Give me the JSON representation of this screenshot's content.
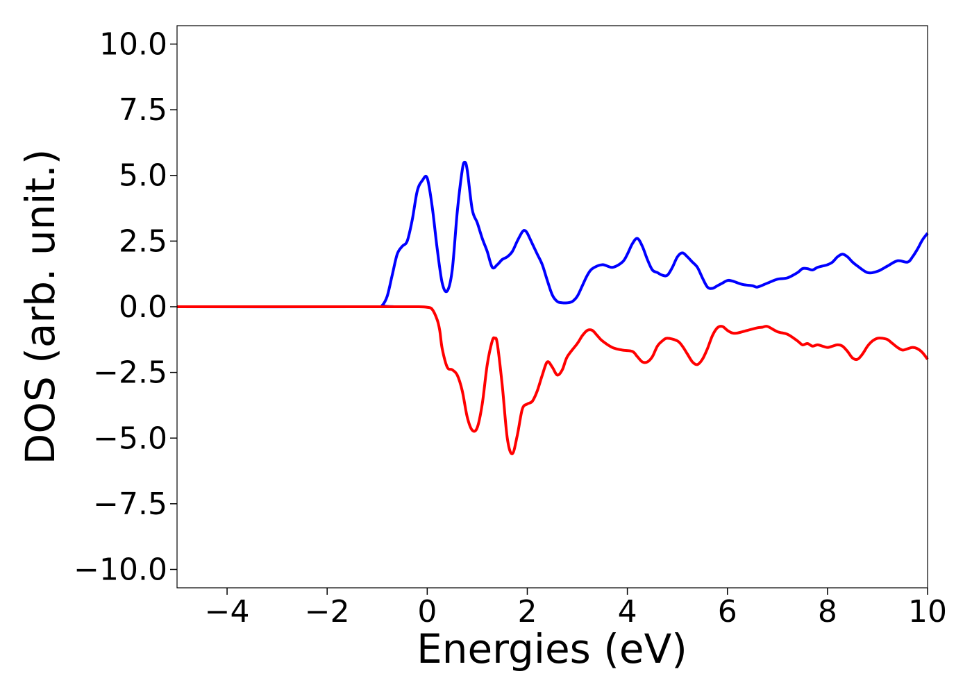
{
  "chart_data": {
    "type": "line",
    "title": "",
    "xlabel": "Energies (eV)",
    "ylabel": "DOS (arb. unit.)",
    "xlim": [
      -5,
      10
    ],
    "ylim": [
      -10.7,
      10.7
    ],
    "x_ticks": [
      -4,
      -2,
      0,
      2,
      4,
      6,
      8,
      10
    ],
    "x_tick_labels": [
      "−4",
      "−2",
      "0",
      "2",
      "4",
      "6",
      "8",
      "10"
    ],
    "y_ticks": [
      10,
      7.5,
      5,
      2.5,
      0,
      -2.5,
      -5,
      -7.5,
      -10
    ],
    "y_tick_labels": [
      "10.0",
      "7.5",
      "5.0",
      "2.5",
      "0.0",
      "−2.5",
      "−5.0",
      "−7.5",
      "−10.0"
    ],
    "grid": false,
    "legend": "none",
    "series": [
      {
        "color": "#0000ff",
        "x": [
          -5,
          -1.0,
          -0.9,
          -0.8,
          -0.7,
          -0.6,
          -0.5,
          -0.4,
          -0.3,
          -0.2,
          -0.1,
          0.0,
          0.1,
          0.2,
          0.3,
          0.4,
          0.5,
          0.6,
          0.7,
          0.75,
          0.8,
          0.9,
          1.0,
          1.1,
          1.2,
          1.3,
          1.4,
          1.5,
          1.6,
          1.7,
          1.8,
          1.9,
          1.95,
          2.0,
          2.1,
          2.2,
          2.3,
          2.4,
          2.5,
          2.6,
          2.7,
          2.8,
          2.9,
          3.0,
          3.1,
          3.2,
          3.3,
          3.5,
          3.7,
          3.9,
          4.0,
          4.1,
          4.2,
          4.3,
          4.4,
          4.5,
          4.6,
          4.7,
          4.8,
          4.9,
          5.0,
          5.1,
          5.2,
          5.3,
          5.4,
          5.5,
          5.6,
          5.7,
          5.8,
          5.9,
          6.0,
          6.1,
          6.3,
          6.5,
          6.6,
          6.8,
          7.0,
          7.2,
          7.4,
          7.5,
          7.6,
          7.7,
          7.8,
          7.9,
          8.0,
          8.1,
          8.2,
          8.3,
          8.4,
          8.5,
          8.6,
          8.8,
          9.0,
          9.2,
          9.4,
          9.6,
          9.7,
          9.8,
          9.9,
          10.0
        ],
        "y": [
          0,
          0,
          0.05,
          0.4,
          1.2,
          2.0,
          2.3,
          2.5,
          3.3,
          4.4,
          4.8,
          4.9,
          3.8,
          2.2,
          0.9,
          0.6,
          1.4,
          3.6,
          5.2,
          5.5,
          5.2,
          3.7,
          3.2,
          2.6,
          2.1,
          1.5,
          1.6,
          1.8,
          1.9,
          2.1,
          2.5,
          2.85,
          2.9,
          2.8,
          2.4,
          2.0,
          1.6,
          1.0,
          0.45,
          0.2,
          0.15,
          0.15,
          0.2,
          0.4,
          0.8,
          1.2,
          1.45,
          1.6,
          1.5,
          1.7,
          2.0,
          2.4,
          2.6,
          2.3,
          1.8,
          1.4,
          1.3,
          1.2,
          1.2,
          1.5,
          1.9,
          2.05,
          1.9,
          1.7,
          1.5,
          1.1,
          0.75,
          0.7,
          0.8,
          0.9,
          1.0,
          0.98,
          0.85,
          0.8,
          0.75,
          0.9,
          1.05,
          1.1,
          1.3,
          1.45,
          1.45,
          1.4,
          1.5,
          1.55,
          1.6,
          1.7,
          1.9,
          2.0,
          1.9,
          1.7,
          1.55,
          1.3,
          1.35,
          1.55,
          1.75,
          1.7,
          1.9,
          2.2,
          2.55,
          2.8
        ]
      },
      {
        "color": "#ff0000",
        "x": [
          -5,
          -1.0,
          -0.5,
          -0.2,
          0.0,
          0.1,
          0.2,
          0.25,
          0.3,
          0.4,
          0.5,
          0.6,
          0.7,
          0.8,
          0.9,
          1.0,
          1.1,
          1.2,
          1.3,
          1.35,
          1.4,
          1.5,
          1.6,
          1.7,
          1.8,
          1.9,
          2.0,
          2.1,
          2.2,
          2.3,
          2.4,
          2.5,
          2.6,
          2.7,
          2.8,
          3.0,
          3.1,
          3.2,
          3.3,
          3.4,
          3.5,
          3.7,
          3.9,
          4.1,
          4.2,
          4.3,
          4.4,
          4.5,
          4.6,
          4.7,
          4.8,
          5.0,
          5.1,
          5.2,
          5.3,
          5.4,
          5.5,
          5.6,
          5.7,
          5.8,
          5.9,
          6.0,
          6.1,
          6.2,
          6.4,
          6.6,
          6.7,
          6.8,
          7.0,
          7.2,
          7.4,
          7.5,
          7.6,
          7.7,
          7.8,
          7.9,
          8.0,
          8.1,
          8.2,
          8.3,
          8.4,
          8.5,
          8.6,
          8.7,
          8.8,
          8.9,
          9.0,
          9.1,
          9.2,
          9.3,
          9.4,
          9.5,
          9.6,
          9.7,
          9.8,
          9.9,
          10.0
        ],
        "y": [
          0,
          0,
          0,
          0,
          -0.02,
          -0.1,
          -0.5,
          -0.9,
          -1.6,
          -2.3,
          -2.4,
          -2.6,
          -3.2,
          -4.2,
          -4.7,
          -4.6,
          -3.7,
          -2.2,
          -1.3,
          -1.2,
          -1.4,
          -3.0,
          -5.0,
          -5.6,
          -4.9,
          -3.9,
          -3.7,
          -3.6,
          -3.2,
          -2.6,
          -2.1,
          -2.3,
          -2.6,
          -2.4,
          -1.9,
          -1.4,
          -1.1,
          -0.9,
          -0.9,
          -1.1,
          -1.3,
          -1.55,
          -1.65,
          -1.7,
          -1.9,
          -2.1,
          -2.1,
          -1.9,
          -1.5,
          -1.3,
          -1.2,
          -1.3,
          -1.5,
          -1.8,
          -2.1,
          -2.2,
          -2.0,
          -1.6,
          -1.1,
          -0.8,
          -0.75,
          -0.9,
          -1.0,
          -1.0,
          -0.9,
          -0.8,
          -0.78,
          -0.75,
          -0.95,
          -1.05,
          -1.3,
          -1.45,
          -1.4,
          -1.5,
          -1.45,
          -1.5,
          -1.55,
          -1.5,
          -1.45,
          -1.5,
          -1.7,
          -1.95,
          -2.0,
          -1.8,
          -1.5,
          -1.3,
          -1.2,
          -1.2,
          -1.25,
          -1.4,
          -1.55,
          -1.65,
          -1.6,
          -1.55,
          -1.6,
          -1.75,
          -2.0
        ]
      }
    ]
  }
}
